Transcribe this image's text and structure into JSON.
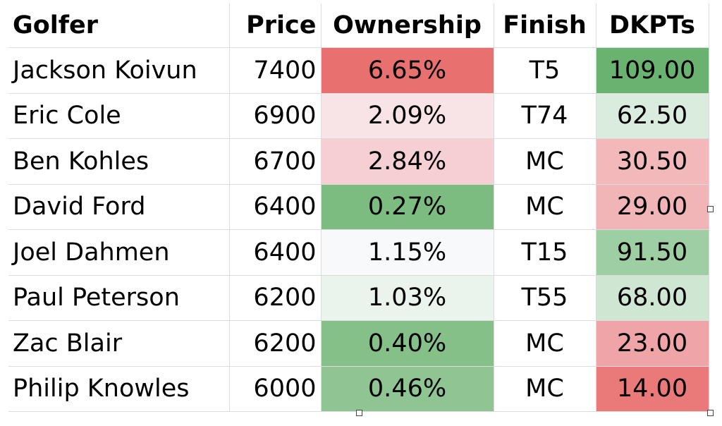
{
  "table": {
    "header": [
      "Golfer",
      "Price",
      "Ownership",
      "Finish",
      "DKPTs"
    ],
    "rows": [
      [
        "Jackson Koivun",
        7400,
        "6.65%",
        "T5",
        "109.00"
      ],
      [
        "Eric Cole",
        6900,
        "2.09%",
        "T74",
        "62.50"
      ],
      [
        "Ben Kohles",
        6700,
        "2.84%",
        "MC",
        "30.50"
      ],
      [
        "David Ford",
        6400,
        "0.27%",
        "MC",
        "29.00"
      ],
      [
        "Joel Dahmen",
        6400,
        "1.15%",
        "T15",
        "91.50"
      ],
      [
        "Paul Peterson",
        6200,
        "1.03%",
        "T55",
        "68.00"
      ],
      [
        "Zac Blair",
        6200,
        "0.40%",
        "MC",
        "23.00"
      ],
      [
        "Philip Knowles",
        6000,
        "0.46%",
        "MC",
        "14.00"
      ]
    ]
  }
}
